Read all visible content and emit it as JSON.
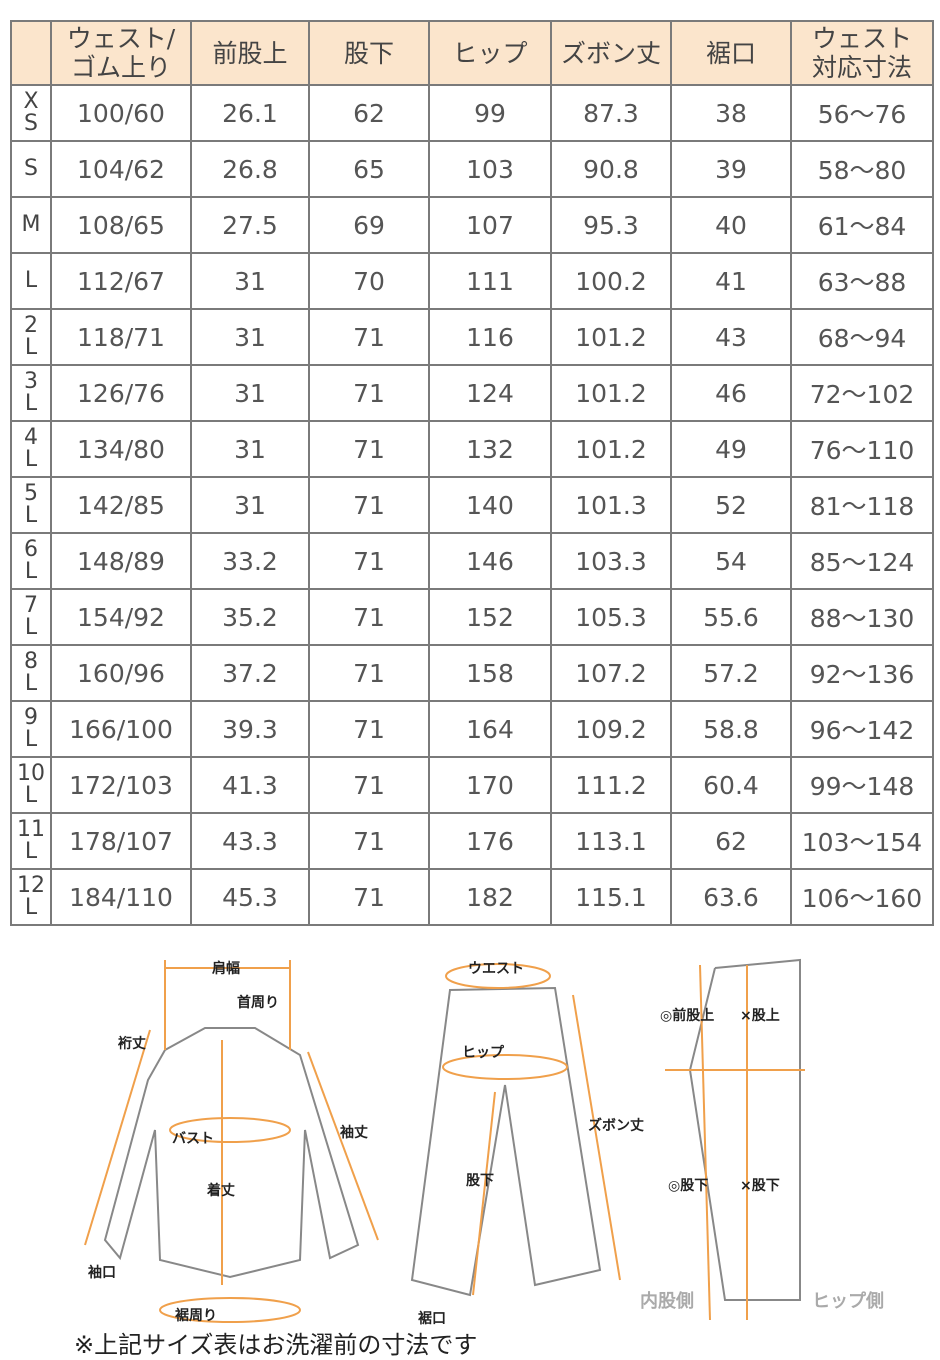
{
  "table": {
    "headers": [
      "",
      "ウェスト/\nゴム上り",
      "前股上",
      "股下",
      "ヒップ",
      "ズボン丈",
      "裾口",
      "ウェスト\n対応寸法"
    ],
    "rows": [
      [
        "X\nS",
        "100/60",
        "26.1",
        "62",
        "99",
        "87.3",
        "38",
        "56～76"
      ],
      [
        "S",
        "104/62",
        "26.8",
        "65",
        "103",
        "90.8",
        "39",
        "58～80"
      ],
      [
        "M",
        "108/65",
        "27.5",
        "69",
        "107",
        "95.3",
        "40",
        "61～84"
      ],
      [
        "L",
        "112/67",
        "31",
        "70",
        "111",
        "100.2",
        "41",
        "63～88"
      ],
      [
        "2\nL",
        "118/71",
        "31",
        "71",
        "116",
        "101.2",
        "43",
        "68～94"
      ],
      [
        "3\nL",
        "126/76",
        "31",
        "71",
        "124",
        "101.2",
        "46",
        "72～102"
      ],
      [
        "4\nL",
        "134/80",
        "31",
        "71",
        "132",
        "101.2",
        "49",
        "76～110"
      ],
      [
        "5\nL",
        "142/85",
        "31",
        "71",
        "140",
        "101.3",
        "52",
        "81～118"
      ],
      [
        "6\nL",
        "148/89",
        "33.2",
        "71",
        "146",
        "103.3",
        "54",
        "85～124"
      ],
      [
        "7\nL",
        "154/92",
        "35.2",
        "71",
        "152",
        "105.3",
        "55.6",
        "88～130"
      ],
      [
        "8\nL",
        "160/96",
        "37.2",
        "71",
        "158",
        "107.2",
        "57.2",
        "92～136"
      ],
      [
        "9\nL",
        "166/100",
        "39.3",
        "71",
        "164",
        "109.2",
        "58.8",
        "96～142"
      ],
      [
        "10\nL",
        "172/103",
        "41.3",
        "71",
        "170",
        "111.2",
        "60.4",
        "99～148"
      ],
      [
        "11\nL",
        "178/107",
        "43.3",
        "71",
        "176",
        "113.1",
        "62",
        "103～154"
      ],
      [
        "12\nL",
        "184/110",
        "45.3",
        "71",
        "182",
        "115.1",
        "63.6",
        "106～160"
      ]
    ]
  },
  "diagram": {
    "shirt": {
      "shoulder": "肩幅",
      "neck": "首周り",
      "yuki": "裄丈",
      "sleeve": "袖丈",
      "bust": "バスト",
      "length": "着丈",
      "cuff": "袖口",
      "hem": "裾周り"
    },
    "pants": {
      "waist": "ウエスト",
      "hip": "ヒップ",
      "length": "ズボン丈",
      "inseam": "股下",
      "hem": "裾口"
    },
    "side": {
      "front_rise": "◎前股上",
      "rise": "×股上",
      "inseam_o": "◎股下",
      "inseam_x": "×股下",
      "inner": "内股側",
      "hip_side": "ヒップ側"
    }
  },
  "colors": {
    "header_bg": "#fbe5cc",
    "accent": "#f0a04b",
    "border": "#7a7a7a"
  },
  "note": "※上記サイズ表はお洗濯前の寸法です"
}
